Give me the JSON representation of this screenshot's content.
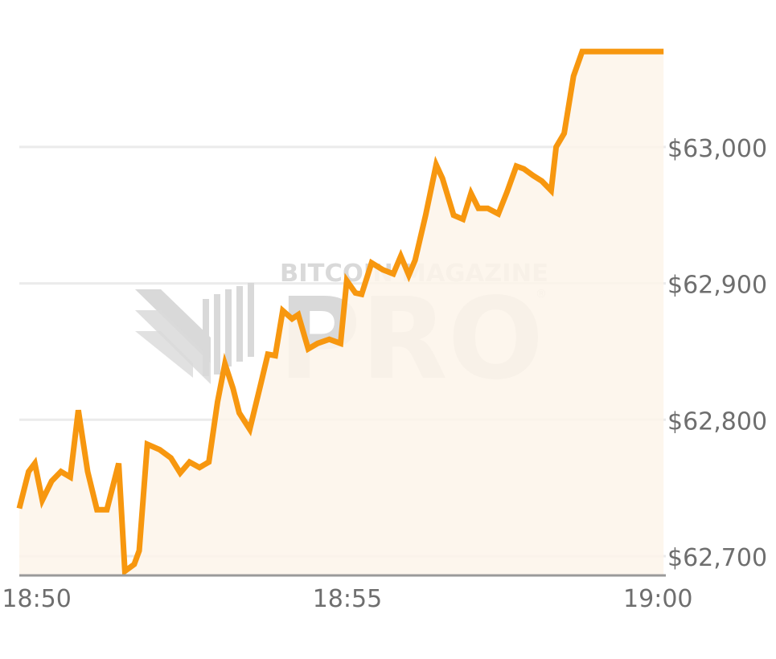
{
  "watermark": {
    "line1": "BITCOIN MAGAZINE",
    "line2": "PRO",
    "registered": "®"
  },
  "colors": {
    "line": "#F7970F",
    "area": "#FDF5EA",
    "grid": "#EBEBEB",
    "axis": "#9A9A9A",
    "tick_text": "#6E6E6E",
    "watermark": "#D9D9D9"
  },
  "chart_data": {
    "type": "area",
    "title": "",
    "xlabel": "",
    "ylabel": "",
    "x_ticks": [
      "18:50",
      "18:55",
      "19:00"
    ],
    "x_tick_minutes": [
      0,
      5,
      10
    ],
    "y_ticks": [
      "$62,700",
      "$62,800",
      "$62,900",
      "$63,000"
    ],
    "y_tick_values": [
      62700,
      62800,
      62900,
      63000
    ],
    "ylim": [
      62686,
      63070
    ],
    "xlim_minutes": [
      -0.28,
      10.1
    ],
    "grid": "horizontal",
    "y_axis_position": "right",
    "series": [
      {
        "x": [
          -0.28,
          -0.13,
          -0.03,
          0.09,
          0.24,
          0.39,
          0.54,
          0.67,
          0.82,
          0.97,
          1.13,
          1.32,
          1.42,
          1.57,
          1.65,
          1.78,
          1.98,
          2.16,
          2.31,
          2.46,
          2.62,
          2.77,
          2.91,
          3.03,
          3.16,
          3.26,
          3.43,
          3.61,
          3.72,
          3.84,
          3.96,
          4.11,
          4.21,
          4.37,
          4.52,
          4.71,
          4.89,
          4.99,
          5.13,
          5.23,
          5.39,
          5.57,
          5.74,
          5.86,
          5.99,
          6.09,
          6.26,
          6.43,
          6.53,
          6.71,
          6.86,
          6.99,
          7.11,
          7.26,
          7.43,
          7.57,
          7.72,
          7.84,
          7.99,
          8.13,
          8.28,
          8.36,
          8.49,
          8.64,
          8.78,
          8.91,
          9.07,
          9.24,
          9.42,
          9.64,
          9.91,
          10.03,
          10.09
        ],
        "y": [
          62735,
          62762,
          62768,
          62741,
          62755,
          62762,
          62758,
          62807,
          62762,
          62734,
          62734,
          62768,
          62689,
          62694,
          62704,
          62782,
          62778,
          62772,
          62761,
          62769,
          62765,
          62769,
          62813,
          62841,
          62823,
          62805,
          62793,
          62827,
          62848,
          62847,
          62880,
          62874,
          62877,
          62852,
          62856,
          62859,
          62856,
          62902,
          62893,
          62892,
          62915,
          62910,
          62907,
          62920,
          62906,
          62917,
          62950,
          62987,
          62977,
          62950,
          62947,
          62966,
          62955,
          62955,
          62951,
          62967,
          62986,
          62984,
          62979,
          62975,
          62968,
          63000,
          63010,
          63052,
          63070,
          63070,
          63070,
          63070,
          63070,
          63070,
          63070,
          63070,
          63070
        ]
      }
    ]
  }
}
